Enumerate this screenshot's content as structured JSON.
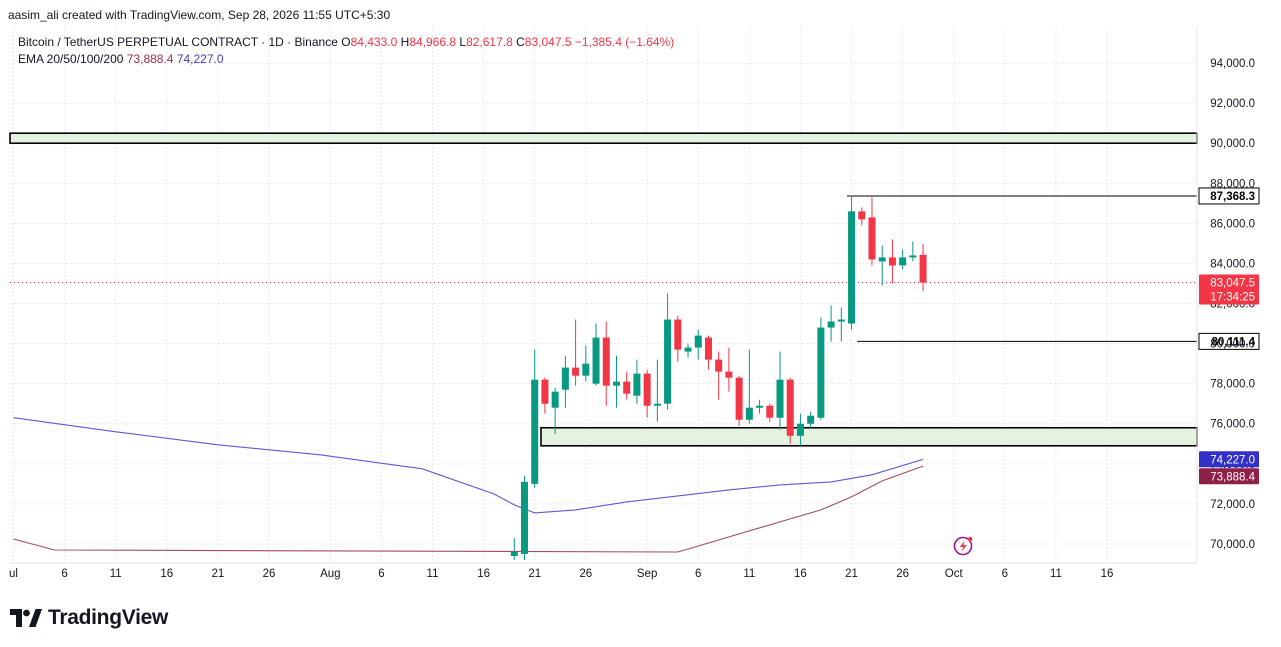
{
  "header": {
    "created_by": "aasim_ali created with TradingView.com, Sep 28, 2026 11:55 UTC+5:30"
  },
  "legend": {
    "symbol": "Bitcoin / TetherUS PERPETUAL CONTRACT · 1D · Binance",
    "o_label": "O",
    "o_value": "84,433.0",
    "h_label": "H",
    "h_value": "84,966.8",
    "l_label": "L",
    "l_value": "82,617.8",
    "c_label": "C",
    "c_value": "83,047.5",
    "change": "−1,385.4 (−1.64%)",
    "ema_label": "EMA 20/50/100/200",
    "ema_value_1": "73,888.4",
    "ema_value_2": "74,227.0"
  },
  "branding": {
    "name": "TradingView"
  },
  "colors": {
    "up": "#089981",
    "down": "#f23645",
    "ema_a": "#5b5bd6",
    "ema_b": "#a24d60",
    "zone_fill": "#e3f3e0",
    "grid": "#e6e8ef"
  },
  "chart_data": {
    "type": "candlestick",
    "ylim": [
      69200,
      95800
    ],
    "y_ticks": [
      "94,000.0",
      "92,000.0",
      "90,000.0",
      "88,000.0",
      "86,000.0",
      "84,000.0",
      "82,000.0",
      "80,000.0",
      "78,000.0",
      "76,000.0",
      "74,000.0",
      "72,000.0",
      "70,000.0"
    ],
    "y_tick_values": [
      94000,
      92000,
      90000,
      88000,
      86000,
      84000,
      82000,
      80000,
      78000,
      76000,
      74000,
      72000,
      70000
    ],
    "x_ticks": [
      {
        "label": "ul",
        "day": 0
      },
      {
        "label": "6",
        "day": 5
      },
      {
        "label": "11",
        "day": 10
      },
      {
        "label": "16",
        "day": 15
      },
      {
        "label": "21",
        "day": 20
      },
      {
        "label": "26",
        "day": 25
      },
      {
        "label": "Aug",
        "day": 31
      },
      {
        "label": "6",
        "day": 36
      },
      {
        "label": "11",
        "day": 41
      },
      {
        "label": "16",
        "day": 46
      },
      {
        "label": "21",
        "day": 51
      },
      {
        "label": "26",
        "day": 56
      },
      {
        "label": "Sep",
        "day": 62
      },
      {
        "label": "6",
        "day": 67
      },
      {
        "label": "11",
        "day": 72
      },
      {
        "label": "16",
        "day": 77
      },
      {
        "label": "21",
        "day": 82
      },
      {
        "label": "26",
        "day": 87
      },
      {
        "label": "Oct",
        "day": 92
      },
      {
        "label": "6",
        "day": 97
      },
      {
        "label": "11",
        "day": 102
      },
      {
        "label": "16",
        "day": 107
      }
    ],
    "candles": [
      {
        "day": 49,
        "o": 69400,
        "h": 70300,
        "l": 69200,
        "c": 69600
      },
      {
        "day": 50,
        "o": 69500,
        "h": 73400,
        "l": 69200,
        "c": 73100
      },
      {
        "day": 51,
        "o": 73000,
        "h": 79700,
        "l": 72800,
        "c": 78200
      },
      {
        "day": 52,
        "o": 78200,
        "h": 78300,
        "l": 76500,
        "c": 77000
      },
      {
        "day": 53,
        "o": 76800,
        "h": 77800,
        "l": 75500,
        "c": 77600
      },
      {
        "day": 54,
        "o": 77700,
        "h": 79400,
        "l": 76800,
        "c": 78800
      },
      {
        "day": 55,
        "o": 78800,
        "h": 81200,
        "l": 77900,
        "c": 78400
      },
      {
        "day": 56,
        "o": 78400,
        "h": 79900,
        "l": 78100,
        "c": 79000
      },
      {
        "day": 57,
        "o": 78000,
        "h": 81000,
        "l": 77900,
        "c": 80300
      },
      {
        "day": 58,
        "o": 80300,
        "h": 81100,
        "l": 76900,
        "c": 77900
      },
      {
        "day": 59,
        "o": 77900,
        "h": 79400,
        "l": 76800,
        "c": 78100
      },
      {
        "day": 60,
        "o": 78100,
        "h": 78600,
        "l": 77200,
        "c": 77500
      },
      {
        "day": 61,
        "o": 77400,
        "h": 79200,
        "l": 77000,
        "c": 78500
      },
      {
        "day": 62,
        "o": 78500,
        "h": 78700,
        "l": 76300,
        "c": 76900
      },
      {
        "day": 63,
        "o": 76900,
        "h": 79200,
        "l": 76100,
        "c": 77000
      },
      {
        "day": 64,
        "o": 77000,
        "h": 82500,
        "l": 76700,
        "c": 81200
      },
      {
        "day": 65,
        "o": 81200,
        "h": 81400,
        "l": 79100,
        "c": 79700
      },
      {
        "day": 66,
        "o": 79600,
        "h": 80000,
        "l": 79300,
        "c": 79800
      },
      {
        "day": 67,
        "o": 79800,
        "h": 80700,
        "l": 79200,
        "c": 80400
      },
      {
        "day": 68,
        "o": 80300,
        "h": 80400,
        "l": 78700,
        "c": 79200
      },
      {
        "day": 69,
        "o": 79200,
        "h": 79600,
        "l": 77200,
        "c": 78600
      },
      {
        "day": 70,
        "o": 78600,
        "h": 79800,
        "l": 77600,
        "c": 78300
      },
      {
        "day": 71,
        "o": 78300,
        "h": 78400,
        "l": 75900,
        "c": 76200
      },
      {
        "day": 72,
        "o": 76200,
        "h": 79700,
        "l": 76000,
        "c": 76800
      },
      {
        "day": 73,
        "o": 76800,
        "h": 77200,
        "l": 76500,
        "c": 76900
      },
      {
        "day": 74,
        "o": 76900,
        "h": 77000,
        "l": 76100,
        "c": 76300
      },
      {
        "day": 75,
        "o": 76300,
        "h": 79600,
        "l": 75700,
        "c": 78200
      },
      {
        "day": 76,
        "o": 78200,
        "h": 78300,
        "l": 75000,
        "c": 75400
      },
      {
        "day": 77,
        "o": 75400,
        "h": 76500,
        "l": 74900,
        "c": 76000
      },
      {
        "day": 78,
        "o": 76000,
        "h": 76600,
        "l": 75800,
        "c": 76400
      },
      {
        "day": 79,
        "o": 76300,
        "h": 81300,
        "l": 76200,
        "c": 80800
      },
      {
        "day": 80,
        "o": 80800,
        "h": 81900,
        "l": 80100,
        "c": 81100
      },
      {
        "day": 81,
        "o": 81100,
        "h": 81800,
        "l": 80100,
        "c": 81200
      },
      {
        "day": 82,
        "o": 81000,
        "h": 87400,
        "l": 80700,
        "c": 86600
      },
      {
        "day": 83,
        "o": 86600,
        "h": 86800,
        "l": 85900,
        "c": 86200
      },
      {
        "day": 84,
        "o": 86300,
        "h": 87300,
        "l": 83900,
        "c": 84200
      },
      {
        "day": 85,
        "o": 84100,
        "h": 84900,
        "l": 82900,
        "c": 84300
      },
      {
        "day": 86,
        "o": 84300,
        "h": 85200,
        "l": 83000,
        "c": 83900
      },
      {
        "day": 87,
        "o": 83900,
        "h": 84700,
        "l": 83700,
        "c": 84300
      },
      {
        "day": 88,
        "o": 84300,
        "h": 85100,
        "l": 84100,
        "c": 84400
      },
      {
        "day": 89,
        "o": 84433,
        "h": 84967,
        "l": 82618,
        "c": 83047.5
      }
    ],
    "ema_series": [
      {
        "values": [
          [
            0,
            76300
          ],
          [
            10,
            75600
          ],
          [
            20,
            74950
          ],
          [
            30,
            74450
          ],
          [
            40,
            73750
          ],
          [
            47,
            72500
          ],
          [
            49,
            71950
          ],
          [
            51,
            71550
          ],
          [
            55,
            71700
          ],
          [
            60,
            72100
          ],
          [
            65,
            72400
          ],
          [
            70,
            72700
          ],
          [
            75,
            72950
          ],
          [
            80,
            73100
          ],
          [
            84,
            73450
          ],
          [
            89,
            74227
          ]
        ]
      },
      {
        "values": [
          [
            0,
            70250
          ],
          [
            4,
            69700
          ],
          [
            65,
            69600
          ],
          [
            68,
            70050
          ],
          [
            72,
            70650
          ],
          [
            76,
            71250
          ],
          [
            79,
            71700
          ],
          [
            82,
            72350
          ],
          [
            85,
            73150
          ],
          [
            89,
            73888.4
          ]
        ]
      }
    ],
    "zones": [
      {
        "from": 90000,
        "to": 90500
      },
      {
        "from": 74900,
        "to": 75800
      }
    ],
    "levels": [
      {
        "price": 87368.3,
        "label": "87,368.3",
        "from_day": 80
      },
      {
        "price": 80111.4,
        "label": "80,111.4",
        "from_day": 80
      }
    ],
    "price_tags": [
      {
        "price": 83047.5,
        "label": "83,047.5",
        "sublabel": "17:34:25",
        "color": "#f23645"
      },
      {
        "price": 74227.0,
        "label": "74,227.0",
        "color": "#3131c9"
      },
      {
        "price": 73888.4,
        "label": "73,888.4",
        "color": "#8e1f46"
      }
    ]
  }
}
